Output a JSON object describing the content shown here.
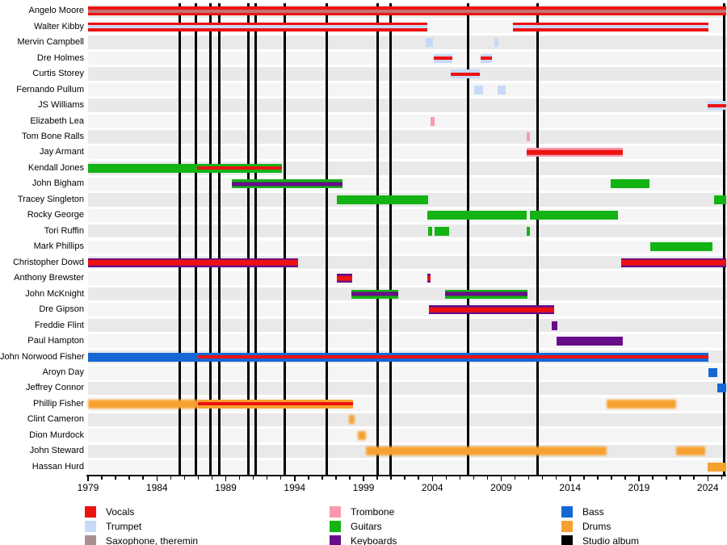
{
  "chart_data": {
    "type": "timeline",
    "description": "Band membership timeline chart, 30 members, 1979-2025, instrument-colored bars with studio-album vertical lines",
    "x_axis": {
      "start_year": 1979,
      "end_year": 2025.34,
      "major_tick_labels": [
        "1979",
        "1984",
        "1989",
        "1994",
        "1999",
        "2004",
        "2009",
        "2014",
        "2019",
        "2024"
      ],
      "minor_tick_interval": 1
    },
    "colors": {
      "vocals": "#ee1111",
      "trumpet": "#c6d9f7",
      "saxophone": "#c17474",
      "saxophone_legend": "#a99090",
      "trombone": "#f999ac",
      "guitars": "#14b314",
      "keyboards": "#670d89",
      "bass": "#1568d4",
      "drums": "#f6a12f",
      "album": "#000000",
      "band_even": "#e9e9e9",
      "band_odd": "#f5f5f5"
    },
    "album_line_years": [
      1985.68,
      1986.85,
      1987.9,
      1988.55,
      1990.66,
      1991.18,
      1993.3,
      1996.34,
      2000.03,
      2000.97,
      2006.6,
      2011.63,
      2025.16
    ],
    "members": [
      {
        "name": "Angelo Moore",
        "segments": [
          {
            "s": 1979,
            "e": 2025.34,
            "c": "vocals",
            "st": "saxophone",
            "sz": "thin"
          }
        ]
      },
      {
        "name": "Walter Kibby",
        "segments": [
          {
            "s": 1979,
            "e": 2003.66,
            "c": "vocals",
            "st": "trumpet",
            "sz": "thin"
          },
          {
            "s": 2009.87,
            "e": 2024.04,
            "c": "vocals",
            "st": "trumpet",
            "sz": "thin"
          }
        ]
      },
      {
        "name": "Mervin Campbell",
        "segments": [
          {
            "s": 2003.54,
            "e": 2004.07,
            "c": "trumpet"
          },
          {
            "s": 2008.52,
            "e": 2008.82,
            "c": "trumpet"
          }
        ]
      },
      {
        "name": "Dre Holmes",
        "segments": [
          {
            "s": 2004.13,
            "e": 2005.48,
            "c": "trumpet",
            "st": "vocals",
            "sz": "thin"
          },
          {
            "s": 2007.53,
            "e": 2008.35,
            "c": "trumpet",
            "st": "vocals",
            "sz": "thin"
          }
        ]
      },
      {
        "name": "Curtis Storey",
        "segments": [
          {
            "s": 2005.36,
            "e": 2007.47,
            "c": "trumpet",
            "st": "vocals",
            "sz": "thin"
          }
        ]
      },
      {
        "name": "Fernando Pullum",
        "segments": [
          {
            "s": 2007.06,
            "e": 2007.7,
            "c": "trumpet"
          },
          {
            "s": 2008.76,
            "e": 2009.34,
            "c": "trumpet"
          }
        ]
      },
      {
        "name": "JS Williams",
        "segments": [
          {
            "s": 2023.99,
            "e": 2025.34,
            "c": "trumpet",
            "st": "vocals",
            "sz": "thin"
          }
        ]
      },
      {
        "name": "Elizabeth Lea",
        "segments": [
          {
            "s": 2003.84,
            "e": 2004.19,
            "c": "trombone"
          }
        ]
      },
      {
        "name": "Tom Bone Ralls",
        "segments": [
          {
            "s": 2010.87,
            "e": 2011.1,
            "c": "trombone"
          }
        ]
      },
      {
        "name": "Jay Armant",
        "segments": [
          {
            "s": 2010.87,
            "e": 2017.84,
            "c": "trombone",
            "st": "vocals",
            "sz": "thick"
          }
        ]
      },
      {
        "name": "Kendall Jones",
        "segments": [
          {
            "s": 1979,
            "e": 1986.9,
            "c": "guitars"
          },
          {
            "s": 1986.9,
            "e": 1993.06,
            "c": "guitars",
            "st": "vocals",
            "sz": "thin"
          }
        ]
      },
      {
        "name": "John Bigham",
        "segments": [
          {
            "s": 1989.43,
            "e": 1997.45,
            "c": "guitars",
            "st": "keyboards",
            "sz": "mid"
          },
          {
            "s": 2016.96,
            "e": 2019.77,
            "c": "guitars"
          }
        ]
      },
      {
        "name": "Tracey Singleton",
        "segments": [
          {
            "s": 1997.04,
            "e": 2003.72,
            "c": "guitars"
          },
          {
            "s": 2024.46,
            "e": 2025.34,
            "c": "guitars"
          }
        ]
      },
      {
        "name": "Rocky George",
        "segments": [
          {
            "s": 2003.66,
            "e": 2010.87,
            "c": "guitars"
          },
          {
            "s": 2011.1,
            "e": 2017.49,
            "c": "guitars"
          }
        ]
      },
      {
        "name": "Tori Ruffin",
        "segments": [
          {
            "s": 2003.72,
            "e": 2004.01,
            "c": "guitars"
          },
          {
            "s": 2004.19,
            "e": 2005.24,
            "c": "guitars"
          },
          {
            "s": 2010.87,
            "e": 2011.1,
            "c": "guitars"
          }
        ]
      },
      {
        "name": "Mark Phillips",
        "segments": [
          {
            "s": 2019.83,
            "e": 2024.34,
            "c": "guitars"
          }
        ]
      },
      {
        "name": "Christopher Dowd",
        "segments": [
          {
            "s": 1979,
            "e": 1994.23,
            "c": "keyboards",
            "st": "vocals",
            "sz": "thick"
          },
          {
            "s": 2017.72,
            "e": 2025.34,
            "c": "keyboards",
            "st": "vocals",
            "sz": "thick"
          }
        ]
      },
      {
        "name": "Anthony Brewster",
        "segments": [
          {
            "s": 1997.04,
            "e": 1998.15,
            "c": "keyboards",
            "st": "vocals",
            "sz": "thick"
          },
          {
            "s": 2003.66,
            "e": 2003.84,
            "c": "keyboards",
            "st": "vocals",
            "sz": "thick"
          }
        ]
      },
      {
        "name": "John McKnight",
        "segments": [
          {
            "s": 1998.1,
            "e": 2001.5,
            "c": "guitars",
            "st": "keyboards",
            "sz": "mid"
          },
          {
            "s": 2004.95,
            "e": 2010.93,
            "c": "guitars",
            "st": "keyboards",
            "sz": "mid"
          }
        ]
      },
      {
        "name": "Dre Gipson",
        "segments": [
          {
            "s": 2003.78,
            "e": 2012.86,
            "c": "keyboards",
            "st": "vocals",
            "sz": "thick"
          }
        ]
      },
      {
        "name": "Freddie Flint",
        "segments": [
          {
            "s": 2012.68,
            "e": 2013.09,
            "c": "keyboards"
          }
        ]
      },
      {
        "name": "Paul Hampton",
        "segments": [
          {
            "s": 2013.03,
            "e": 2017.84,
            "c": "keyboards"
          }
        ]
      },
      {
        "name": "John Norwood Fisher",
        "segments": [
          {
            "s": 1979,
            "e": 1986.97,
            "c": "bass"
          },
          {
            "s": 1986.97,
            "e": 2024.04,
            "c": "bass",
            "st": "vocals",
            "sz": "thin"
          }
        ]
      },
      {
        "name": "Aroyn Day",
        "segments": [
          {
            "s": 2024.04,
            "e": 2024.69,
            "c": "bass"
          }
        ]
      },
      {
        "name": "Jeffrey Connor",
        "segments": [
          {
            "s": 2024.69,
            "e": 2025.34,
            "c": "bass"
          }
        ]
      },
      {
        "name": "Phillip Fisher",
        "segments": [
          {
            "s": 1979,
            "e": 1986.97,
            "c": "drums",
            "soft": true
          },
          {
            "s": 1986.97,
            "e": 1998.21,
            "c": "drums",
            "st": "vocals",
            "sz": "thin"
          },
          {
            "s": 2016.67,
            "e": 2021.7,
            "c": "drums",
            "soft": true
          }
        ]
      },
      {
        "name": "Clint Cameron",
        "segments": [
          {
            "s": 1997.92,
            "e": 1998.33,
            "c": "drums",
            "soft": true
          }
        ]
      },
      {
        "name": "Dion Murdock",
        "segments": [
          {
            "s": 1998.57,
            "e": 1999.15,
            "c": "drums",
            "soft": true
          }
        ]
      },
      {
        "name": "John Steward",
        "segments": [
          {
            "s": 1999.15,
            "e": 2016.67,
            "c": "drums",
            "soft": true
          },
          {
            "s": 2021.7,
            "e": 2023.8,
            "c": "drums",
            "soft": true
          }
        ]
      },
      {
        "name": "Hassan Hurd",
        "segments": [
          {
            "s": 2023.99,
            "e": 2025.34,
            "c": "drums"
          }
        ]
      }
    ]
  },
  "legend": {
    "columns": [
      {
        "items": [
          {
            "label": "Vocals",
            "color": "vocals"
          },
          {
            "label": "Trumpet",
            "color": "trumpet"
          },
          {
            "label": "Saxophone, theremin",
            "color": "saxophone_legend"
          }
        ]
      },
      {
        "items": [
          {
            "label": "Trombone",
            "color": "trombone"
          },
          {
            "label": "Guitars",
            "color": "guitars"
          },
          {
            "label": "Keyboards",
            "color": "keyboards"
          }
        ]
      },
      {
        "items": [
          {
            "label": "Bass",
            "color": "bass"
          },
          {
            "label": "Drums",
            "color": "drums"
          },
          {
            "label": "Studio album",
            "color": "album"
          }
        ]
      }
    ]
  }
}
